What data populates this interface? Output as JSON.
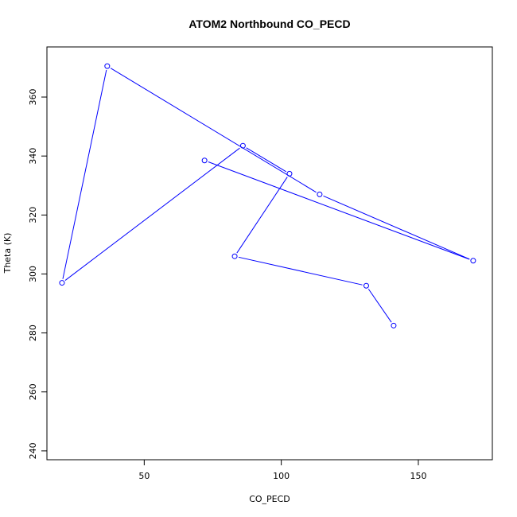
{
  "chart_data": {
    "type": "line",
    "title": "ATOM2 Northbound CO_PECD",
    "xlabel": "CO_PECD",
    "ylabel": "Theta (K)",
    "xlim": [
      14.5,
      177
    ],
    "ylim": [
      237,
      377
    ],
    "x_ticks": [
      50,
      100,
      150
    ],
    "y_ticks": [
      240,
      260,
      280,
      300,
      320,
      340,
      360
    ],
    "grid": false,
    "series_color": "#0000ff",
    "markers": "open-circle",
    "points": [
      {
        "x": 141.0,
        "y": 282.5
      },
      {
        "x": 131.0,
        "y": 296.0
      },
      {
        "x": 83.0,
        "y": 306.0
      },
      {
        "x": 103.0,
        "y": 334.0
      },
      {
        "x": 86.0,
        "y": 343.5
      },
      {
        "x": 20.0,
        "y": 297.0
      },
      {
        "x": 36.5,
        "y": 370.5
      },
      {
        "x": 114.0,
        "y": 327.0
      },
      {
        "x": 170.0,
        "y": 304.5
      },
      {
        "x": 72.0,
        "y": 338.5
      }
    ]
  }
}
